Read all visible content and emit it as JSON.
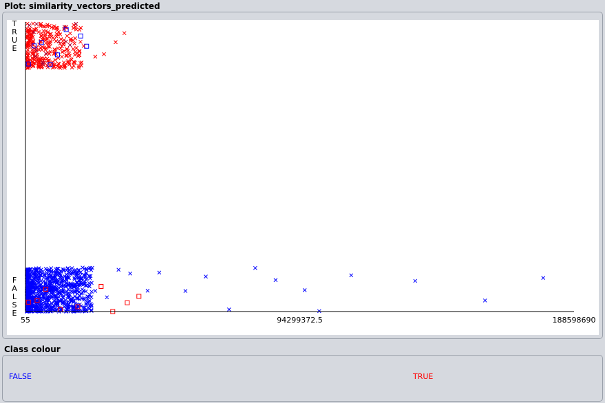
{
  "plot": {
    "title": "Plot: similarity_vectors_predicted"
  },
  "legend": {
    "title": "Class colour",
    "items": [
      {
        "label": "FALSE",
        "color": "#0000ff"
      },
      {
        "label": "TRUE",
        "color": "#ff0000"
      }
    ]
  },
  "chart_data": {
    "type": "scatter",
    "title": "",
    "xlabel": "",
    "ylabel": "",
    "xlim": [
      55,
      188598690
    ],
    "x_ticks": [
      "55",
      "94299372.5",
      "188598690"
    ],
    "y_categories": [
      "FALSE",
      "TRUE"
    ],
    "marker_shapes": {
      "cross": "correctly classified",
      "square": "misclassified"
    },
    "series": [
      {
        "class": "FALSE",
        "color": "#0000ff",
        "cross_points": [
          [
            1500000,
            "FALSE"
          ],
          [
            3000000,
            "FALSE"
          ],
          [
            5000000,
            "FALSE"
          ],
          [
            8000000,
            "FALSE"
          ],
          [
            12000000,
            "FALSE"
          ],
          [
            16000000,
            "FALSE"
          ],
          [
            20000000,
            "FALSE"
          ],
          [
            24000000,
            "FALSE"
          ],
          [
            28000000,
            "FALSE"
          ],
          [
            32000000,
            "FALSE"
          ],
          [
            36000000,
            "FALSE"
          ],
          [
            42000000,
            "FALSE"
          ],
          [
            46000000,
            "FALSE"
          ],
          [
            55000000,
            "FALSE"
          ],
          [
            62000000,
            "FALSE"
          ],
          [
            70000000,
            "FALSE"
          ],
          [
            79000000,
            "FALSE"
          ],
          [
            86000000,
            "FALSE"
          ],
          [
            96000000,
            "FALSE"
          ],
          [
            101000000,
            "FALSE"
          ],
          [
            112000000,
            "FALSE"
          ],
          [
            134000000,
            "FALSE"
          ],
          [
            158000000,
            "FALSE"
          ],
          [
            178000000,
            "FALSE"
          ]
        ],
        "square_points": [
          [
            1000000,
            "TRUE"
          ],
          [
            3000000,
            "TRUE"
          ],
          [
            5500000,
            "TRUE"
          ],
          [
            8500000,
            "TRUE"
          ],
          [
            11000000,
            "TRUE"
          ],
          [
            14000000,
            "TRUE"
          ],
          [
            19000000,
            "TRUE"
          ],
          [
            21000000,
            "TRUE"
          ]
        ]
      },
      {
        "class": "TRUE",
        "color": "#ff0000",
        "cross_points": [
          [
            1000000,
            "TRUE"
          ],
          [
            3000000,
            "TRUE"
          ],
          [
            5000000,
            "TRUE"
          ],
          [
            7000000,
            "TRUE"
          ],
          [
            9000000,
            "TRUE"
          ],
          [
            12000000,
            "TRUE"
          ],
          [
            16000000,
            "TRUE"
          ],
          [
            20000000,
            "TRUE"
          ],
          [
            24000000,
            "TRUE"
          ],
          [
            27000000,
            "TRUE"
          ],
          [
            31000000,
            "TRUE"
          ],
          [
            34000000,
            "TRUE"
          ]
        ],
        "square_points": [
          [
            1000000,
            "FALSE"
          ],
          [
            4000000,
            "FALSE"
          ],
          [
            7000000,
            "FALSE"
          ],
          [
            12000000,
            "FALSE"
          ],
          [
            18000000,
            "FALSE"
          ],
          [
            26000000,
            "FALSE"
          ],
          [
            30000000,
            "FALSE"
          ],
          [
            35000000,
            "FALSE"
          ],
          [
            39000000,
            "FALSE"
          ]
        ]
      }
    ]
  }
}
